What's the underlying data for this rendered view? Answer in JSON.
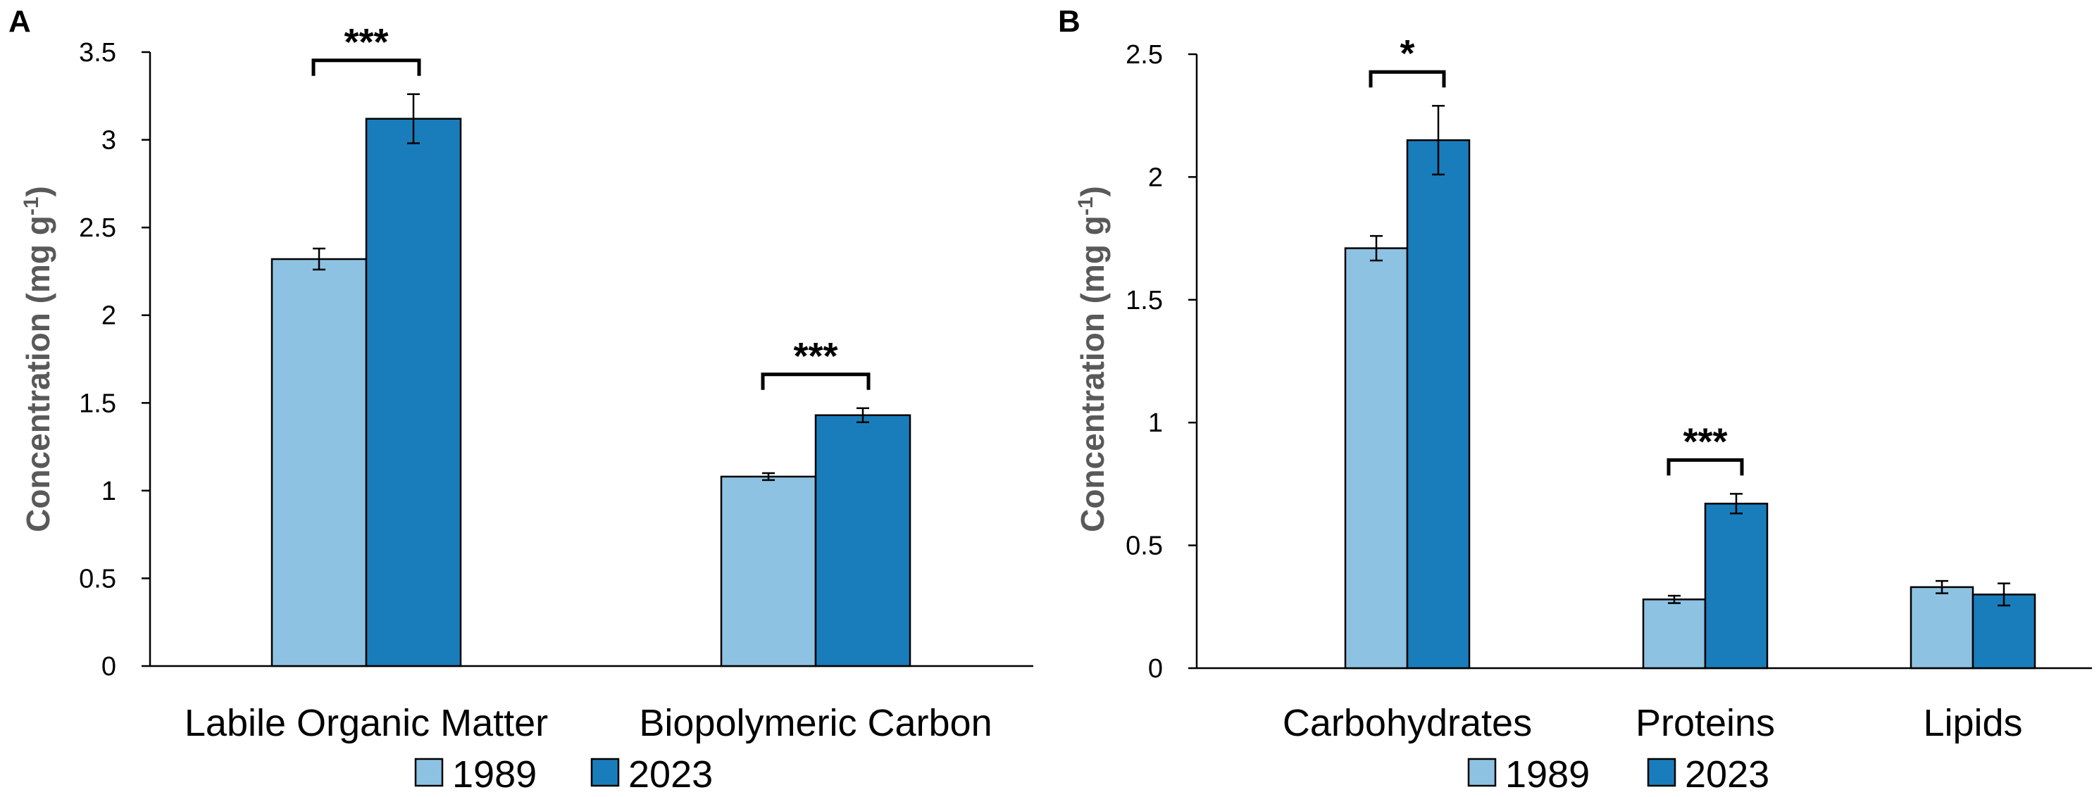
{
  "chart_data": [
    {
      "panel": "A",
      "type": "bar",
      "title": "",
      "ylabel": "Concentration (mg g",
      "ylabel_sup": "-1",
      "ylabel_close": ")",
      "xlabel": "",
      "ylim": [
        0,
        3.5
      ],
      "yticks": [
        0,
        0.5,
        1,
        1.5,
        2,
        2.5,
        3,
        3.5
      ],
      "ytick_labels": [
        "0",
        "0.5",
        "1",
        "1.5",
        "2",
        "2.5",
        "3",
        "3.5"
      ],
      "categories": [
        "Labile Organic Matter",
        "Biopolymeric Carbon"
      ],
      "series": [
        {
          "name": "1989",
          "values": [
            2.32,
            1.08
          ],
          "errors": [
            0.06,
            0.02
          ],
          "color": "#8dc2e3"
        },
        {
          "name": "2023",
          "values": [
            3.12,
            1.43
          ],
          "errors": [
            0.14,
            0.04
          ],
          "color": "#1a7dbb"
        }
      ],
      "significance": [
        "***",
        "***"
      ],
      "legend": [
        "1989",
        "2023"
      ],
      "legend_position": "bottom",
      "grid": false
    },
    {
      "panel": "B",
      "type": "bar",
      "title": "",
      "ylabel": "Concentration (mg g",
      "ylabel_sup": "-1",
      "ylabel_close": ")",
      "xlabel": "",
      "ylim": [
        0,
        2.5
      ],
      "yticks": [
        0,
        0.5,
        1,
        1.5,
        2,
        2.5
      ],
      "ytick_labels": [
        "0",
        "0.5",
        "1",
        "1.5",
        "2",
        "2.5"
      ],
      "categories": [
        "Carbohydrates",
        "Proteins",
        "Lipids"
      ],
      "series": [
        {
          "name": "1989",
          "values": [
            1.71,
            0.28,
            0.33
          ],
          "errors": [
            0.05,
            0.015,
            0.025
          ],
          "color": "#8dc2e3"
        },
        {
          "name": "2023",
          "values": [
            2.15,
            0.67,
            0.3
          ],
          "errors": [
            0.14,
            0.04,
            0.045
          ],
          "color": "#1a7dbb"
        }
      ],
      "significance": [
        "*",
        "***",
        ""
      ],
      "legend": [
        "1989",
        "2023"
      ],
      "legend_position": "bottom",
      "grid": false
    }
  ]
}
